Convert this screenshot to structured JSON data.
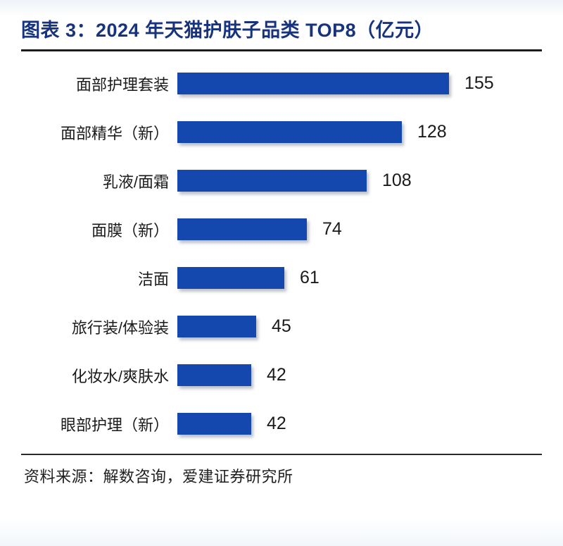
{
  "page": {
    "title": "图表 3：2024 年天猫护肤子品类 TOP8（亿元）",
    "source": "资料来源：解数咨询，爱建证券研究所"
  },
  "colors": {
    "bar": "#1548AE",
    "title_text": "#17337D",
    "label_text": "#1A1A1A",
    "divider": "#1C1C1C"
  },
  "chart_data": {
    "type": "bar",
    "orientation": "horizontal",
    "title": "图表 3：2024 年天猫护肤子品类 TOP8（亿元）",
    "unit": "亿元",
    "categories": [
      "面部护理套装",
      "面部精华（新）",
      "乳液/面霜",
      "面膜（新）",
      "洁面",
      "旅行装/体验装",
      "化妆水/爽肤水",
      "眼部护理（新）"
    ],
    "values": [
      155,
      128,
      108,
      74,
      61,
      45,
      42,
      42
    ],
    "xlabel": "",
    "ylabel": "",
    "value_labels": true,
    "grid": false,
    "legend": false,
    "sorted": "descending"
  }
}
